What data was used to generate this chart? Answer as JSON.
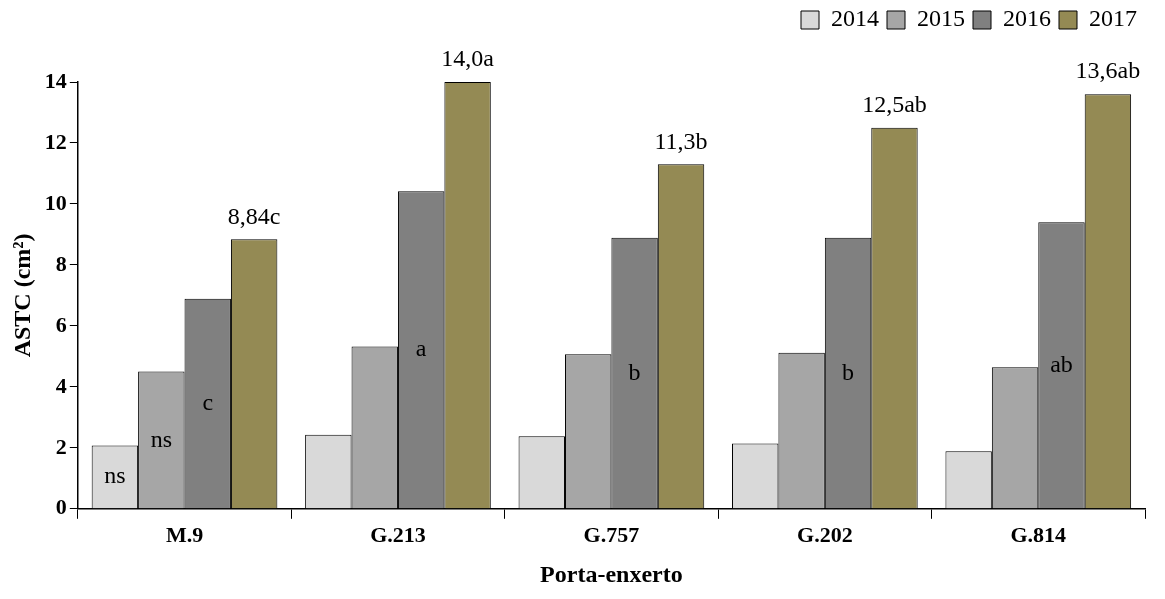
{
  "chart_data": {
    "type": "bar",
    "xlabel": "Porta-enxerto",
    "ylabel": "ASTC (cm²)",
    "categories": [
      "M.9",
      "G.213",
      "G.757",
      "G.202",
      "G.814"
    ],
    "series": [
      {
        "name": "2014",
        "color": "#d9d9d9",
        "values": [
          2.08,
          2.43,
          2.38,
          2.14,
          1.89
        ],
        "value_labels": [
          "ns",
          null,
          null,
          null,
          null
        ]
      },
      {
        "name": "2015",
        "color": "#a6a6a6",
        "values": [
          4.5,
          5.32,
          5.07,
          5.12,
          4.64
        ],
        "value_labels": [
          "ns",
          null,
          null,
          null,
          null
        ]
      },
      {
        "name": "2016",
        "color": "#808080",
        "values": [
          6.89,
          10.42,
          8.89,
          8.89,
          9.4
        ],
        "value_labels": [
          "c",
          "a",
          "b",
          "b",
          "ab"
        ]
      },
      {
        "name": "2017",
        "color": "#948a54",
        "values": [
          8.84,
          14.0,
          11.3,
          12.5,
          13.6
        ],
        "value_labels": [
          "8,84c",
          "14,0a",
          "11,3b",
          "12,5ab",
          "13,6ab"
        ]
      }
    ],
    "ylim": [
      0,
      14
    ],
    "yticks": [
      0,
      2,
      4,
      6,
      8,
      10,
      12,
      14
    ],
    "grid": false,
    "legend": "top right"
  }
}
